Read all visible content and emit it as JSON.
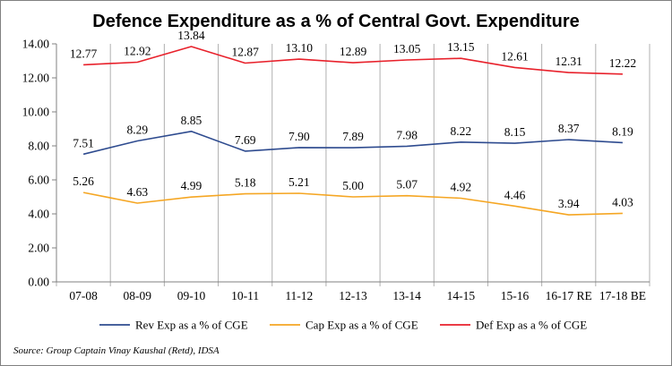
{
  "chart_data": {
    "type": "line",
    "title": "Defence Expenditure as a % of Central Govt. Expenditure",
    "categories": [
      "07-08",
      "08-09",
      "09-10",
      "10-11",
      "11-12",
      "12-13",
      "13-14",
      "14-15",
      "15-16",
      "16-17 RE",
      "17-18 BE"
    ],
    "series": [
      {
        "name": "Rev Exp as a % of CGE",
        "color": "#2e4b8f",
        "values": [
          7.51,
          8.29,
          8.85,
          7.69,
          7.9,
          7.89,
          7.98,
          8.22,
          8.15,
          8.37,
          8.19
        ],
        "labels": [
          "7.51",
          "8.29",
          "8.85",
          "7.69",
          "7.90",
          "7.89",
          "7.98",
          "8.22",
          "8.15",
          "8.37",
          "8.19"
        ]
      },
      {
        "name": "Cap Exp as a % of CGE",
        "color": "#f5a623",
        "values": [
          5.26,
          4.63,
          4.99,
          5.18,
          5.21,
          5.0,
          5.07,
          4.92,
          4.46,
          3.94,
          4.03
        ],
        "labels": [
          "5.26",
          "4.63",
          "4.99",
          "5.18",
          "5.21",
          "5.00",
          "5.07",
          "4.92",
          "4.46",
          "3.94",
          "4.03"
        ]
      },
      {
        "name": "Def Exp as a % of CGE",
        "color": "#e8212b",
        "values": [
          12.77,
          12.92,
          13.84,
          12.87,
          13.1,
          12.89,
          13.05,
          13.15,
          12.61,
          12.31,
          12.22
        ],
        "labels": [
          "12.77",
          "12.92",
          "13.84",
          "12.87",
          "13.10",
          "12.89",
          "13.05",
          "13.15",
          "12.61",
          "12.31",
          "12.22"
        ]
      }
    ],
    "yticks": [
      "0.00",
      "2.00",
      "4.00",
      "6.00",
      "8.00",
      "10.00",
      "12.00",
      "14.00"
    ],
    "ylim": [
      0,
      14
    ],
    "grid": "vertical",
    "legend": "bottom"
  },
  "source": "Source: Group Captain Vinay Kaushal (Retd), IDSA"
}
